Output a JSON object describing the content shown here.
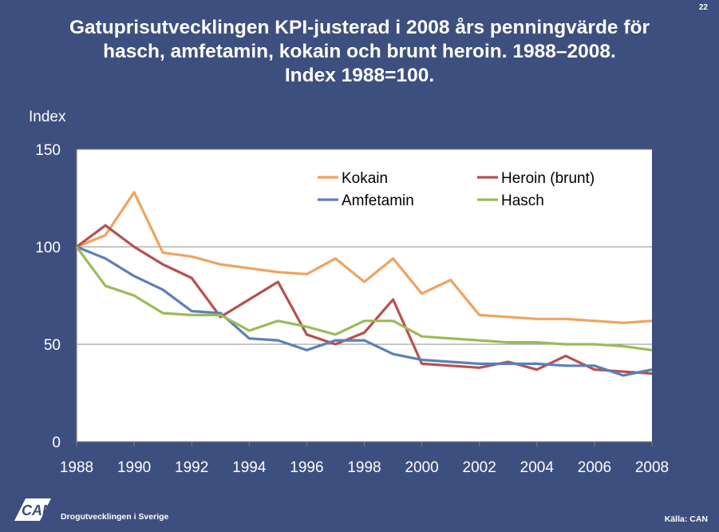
{
  "page": {
    "number": "22",
    "title_lines": [
      "Gatuprisutvecklingen KPI-justerad i 2008 års penningvärde för",
      "hasch, amfetamin, kokain och brunt heroin. 1988–2008.",
      "Index 1988=100."
    ],
    "footer_org": "Drogutvecklingen i Sverige",
    "footer_source": "Källa: CAN",
    "logo_text": "CAN"
  },
  "chart_data": {
    "type": "line",
    "ylabel": "Index",
    "xlabel": "",
    "x": [
      1988,
      1989,
      1990,
      1991,
      1992,
      1993,
      1994,
      1995,
      1996,
      1997,
      1998,
      1999,
      2000,
      2001,
      2002,
      2003,
      2004,
      2005,
      2006,
      2007,
      2008
    ],
    "xticks": [
      1988,
      1990,
      1992,
      1994,
      1996,
      1998,
      2000,
      2002,
      2004,
      2006,
      2008
    ],
    "xlim": [
      1988,
      2008
    ],
    "ylim": [
      0,
      150
    ],
    "yticks": [
      0,
      50,
      100,
      150
    ],
    "grid": true,
    "legend_position": "top-right",
    "series": [
      {
        "name": "Kokain",
        "color": "#f0a35e",
        "values": [
          100,
          106,
          128,
          97,
          95,
          91,
          89,
          87,
          86,
          94,
          82,
          94,
          76,
          83,
          65,
          64,
          63,
          63,
          62,
          61,
          62
        ]
      },
      {
        "name": "Heroin (brunt)",
        "color": "#b8504d",
        "values": [
          100,
          111,
          100,
          91,
          84,
          64,
          73,
          82,
          55,
          50,
          56,
          73,
          40,
          39,
          38,
          41,
          37,
          44,
          37,
          36,
          35
        ]
      },
      {
        "name": "Amfetamin",
        "color": "#5a80b8",
        "values": [
          100,
          94,
          85,
          78,
          67,
          66,
          53,
          52,
          47,
          52,
          52,
          45,
          42,
          41,
          40,
          40,
          40,
          39,
          39,
          34,
          37
        ]
      },
      {
        "name": "Hasch",
        "color": "#9bbb59",
        "values": [
          100,
          80,
          75,
          66,
          65,
          65,
          57,
          62,
          59,
          55,
          62,
          62,
          54,
          53,
          52,
          51,
          51,
          50,
          50,
          49,
          47
        ]
      }
    ]
  }
}
